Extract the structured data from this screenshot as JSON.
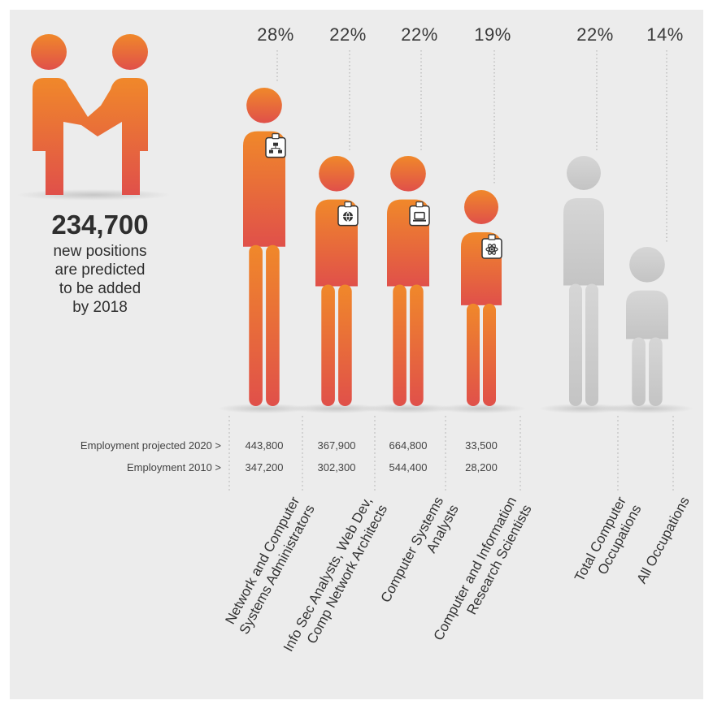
{
  "headline": {
    "value": "234,700",
    "line1": "new positions",
    "line2": "are predicted",
    "line3": "to be added",
    "line4": "by 2018"
  },
  "rows": {
    "projected_label": "Employment projected 2020  >",
    "base_label": "Employment  2010  >"
  },
  "colors": {
    "orange_top": "#f0882a",
    "orange_bottom": "#e0504a",
    "gray_top": "#d6d6d6",
    "gray_bottom": "#c4c4c4",
    "background": "#ececec"
  },
  "chart_data": {
    "type": "bar",
    "categories": [
      "Network and Computer Systems Administrators",
      "Info Sec Analysts, Web Dev, Comp Network Architects",
      "Computer Systems Analysts",
      "Computer and Information Research Scientists",
      "Total Computer Occupations",
      "All Occupations"
    ],
    "category_lines": [
      [
        "Network and Computer",
        "Systems Administrators"
      ],
      [
        "Info Sec Analysts, Web Dev,",
        "Comp Network Architects"
      ],
      [
        "Computer Systems",
        "Analysts"
      ],
      [
        "Computer and Information",
        "Research Scientists"
      ],
      [
        "Total Computer",
        "Occupations"
      ],
      [
        "All Occupations"
      ]
    ],
    "growth_percent": [
      28,
      22,
      22,
      19,
      22,
      14
    ],
    "growth_labels": [
      "28%",
      "22%",
      "22%",
      "19%",
      "22%",
      "14%"
    ],
    "employment_2020": [
      443800,
      367900,
      664800,
      33500,
      null,
      null
    ],
    "employment_2020_labels": [
      "443,800",
      "367,900",
      "664,800",
      "33,500",
      "",
      ""
    ],
    "employment_2010": [
      347200,
      302300,
      544400,
      28200,
      null,
      null
    ],
    "employment_2010_labels": [
      "347,200",
      "302,300",
      "544,400",
      "28,200",
      "",
      ""
    ],
    "badge_icons": [
      "network-diagram-icon",
      "globe-icon",
      "laptop-icon",
      "atom-icon",
      "",
      ""
    ],
    "highlight": [
      "orange",
      "orange",
      "orange",
      "orange",
      "gray",
      "gray"
    ]
  }
}
